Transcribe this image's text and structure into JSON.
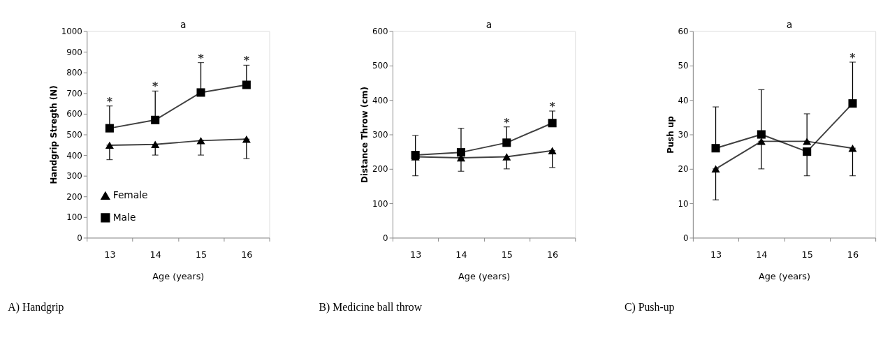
{
  "chart_data": [
    {
      "type": "line",
      "title": "A) Handgrip",
      "xlabel": "Age (years)",
      "ylabel": "Handgrip Stregth (N)",
      "categories": [
        "13",
        "14",
        "15",
        "16"
      ],
      "ylim": [
        0,
        1000
      ],
      "yticks": [
        0,
        100,
        200,
        300,
        400,
        500,
        600,
        700,
        800,
        900,
        1000
      ],
      "legend": "bottom left",
      "grid": false,
      "series": [
        {
          "name": "Female",
          "color": "#000000",
          "marker": "triangle",
          "values": [
            448,
            452,
            470,
            477
          ],
          "errors": [
            [
              378,
              448
            ],
            [
              400,
              452
            ],
            [
              400,
              470
            ],
            [
              383,
              477
            ]
          ]
        },
        {
          "name": "Male",
          "color": "#000000",
          "marker": "square",
          "values": [
            530,
            570,
            703,
            740
          ],
          "errors": [
            [
              530,
              638
            ],
            [
              570,
              710
            ],
            [
              703,
              848
            ],
            [
              740,
              835
            ]
          ]
        }
      ],
      "annotations": [
        {
          "text": "*",
          "x": "13",
          "y": 638
        },
        {
          "text": "*",
          "x": "14",
          "y": 710
        },
        {
          "text": "*",
          "x": "15",
          "y": 848
        },
        {
          "text": "*",
          "x": "16",
          "y": 835
        },
        "a"
      ]
    },
    {
      "type": "line",
      "title": "B) Medicine ball throw",
      "xlabel": "Age (years)",
      "ylabel": "Distance Throw (cm)",
      "categories": [
        "13",
        "14",
        "15",
        "16"
      ],
      "ylim": [
        0,
        600
      ],
      "yticks": [
        0,
        100,
        200,
        300,
        400,
        500,
        600
      ],
      "grid": false,
      "series": [
        {
          "color": "#000000",
          "marker": "triangle",
          "values": [
            235,
            232,
            235,
            253
          ],
          "errors": [
            [
              180,
              235
            ],
            [
              193,
              232
            ],
            [
              200,
              235
            ],
            [
              204,
              253
            ]
          ]
        },
        {
          "color": "#000000",
          "marker": "square",
          "values": [
            240,
            248,
            276,
            333
          ],
          "errors": [
            [
              240,
              297
            ],
            [
              248,
              318
            ],
            [
              276,
              322
            ],
            [
              333,
              368
            ]
          ]
        }
      ],
      "annotations": [
        {
          "text": "*",
          "x": "15",
          "y": 322
        },
        {
          "text": "*",
          "x": "16",
          "y": 368
        },
        "a"
      ]
    },
    {
      "type": "line",
      "title": "C) Push-up",
      "xlabel": "Age (years)",
      "ylabel": "Push up",
      "categories": [
        "13",
        "14",
        "15",
        "16"
      ],
      "ylim": [
        0,
        60
      ],
      "yticks": [
        0,
        10,
        20,
        30,
        40,
        50,
        60
      ],
      "grid": false,
      "series": [
        {
          "color": "#000000",
          "marker": "triangle",
          "values": [
            20,
            28,
            28,
            26
          ],
          "errors": [
            [
              11,
              20
            ],
            [
              20,
              28
            ],
            [
              28,
              36
            ],
            [
              18,
              26
            ]
          ]
        },
        {
          "color": "#000000",
          "marker": "square",
          "values": [
            26,
            30,
            25,
            39
          ],
          "errors": [
            [
              26,
              38
            ],
            [
              30,
              43
            ],
            [
              18,
              25
            ],
            [
              39,
              51
            ]
          ]
        }
      ],
      "annotations": [
        {
          "text": "*",
          "x": "16",
          "y": 51
        },
        "a"
      ]
    }
  ]
}
